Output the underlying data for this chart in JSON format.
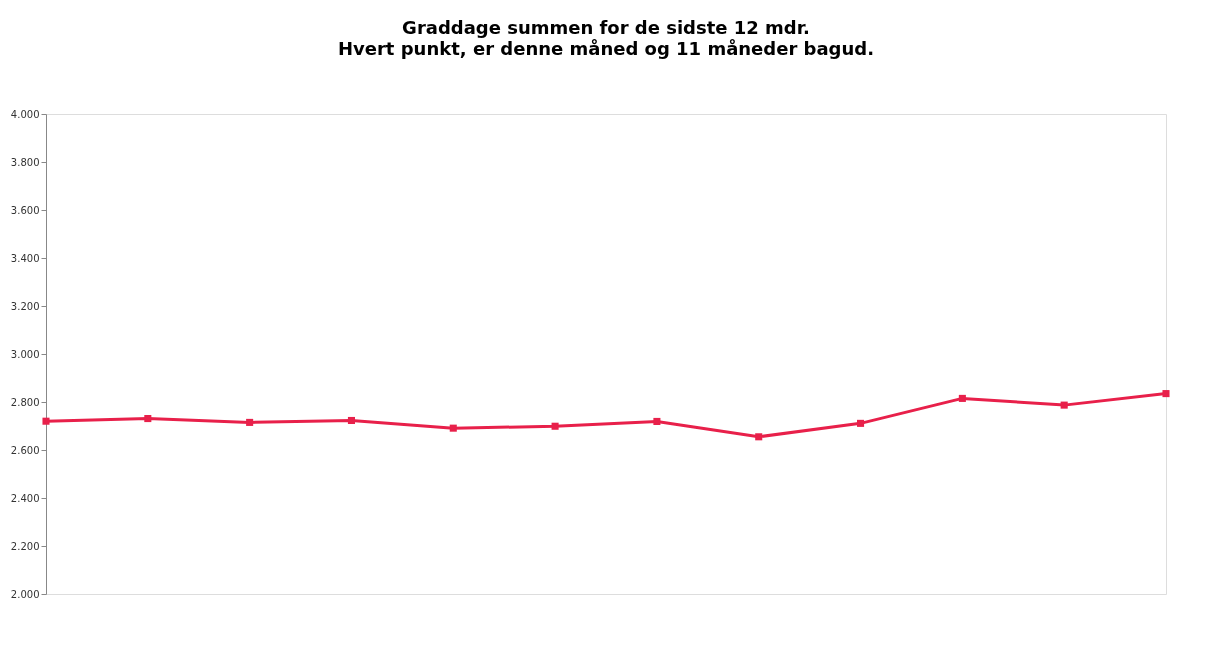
{
  "chart_data": {
    "type": "line",
    "title": "Graddage summen for de sidste 12 mdr.",
    "subtitle": "Hvert punkt, er denne måned og 11 måneder bagud.",
    "categories": [
      null,
      null,
      null,
      null,
      null,
      null,
      null,
      null,
      null,
      null,
      null,
      null
    ],
    "series": [
      {
        "color": "#e8204a",
        "values": [
          2720,
          2731,
          2715,
          2723,
          2691,
          2699,
          2719,
          2655,
          2711,
          2815,
          2787,
          2835
        ]
      }
    ],
    "ylim": [
      2000,
      4000
    ],
    "yticks": [
      {
        "value": 2000,
        "label": "2.000"
      },
      {
        "value": 2200,
        "label": "2.200"
      },
      {
        "value": 2400,
        "label": "2.400"
      },
      {
        "value": 2600,
        "label": "2.600"
      },
      {
        "value": 2800,
        "label": "2.800"
      },
      {
        "value": 3000,
        "label": "3.000"
      },
      {
        "value": 3200,
        "label": "3.200"
      },
      {
        "value": 3400,
        "label": "3.400"
      },
      {
        "value": 3600,
        "label": "3.600"
      },
      {
        "value": 3800,
        "label": "3.800"
      },
      {
        "value": 4000,
        "label": "4.000"
      }
    ],
    "tick_labels": "y",
    "marker": "square",
    "line_style": "solid",
    "grid": false
  }
}
